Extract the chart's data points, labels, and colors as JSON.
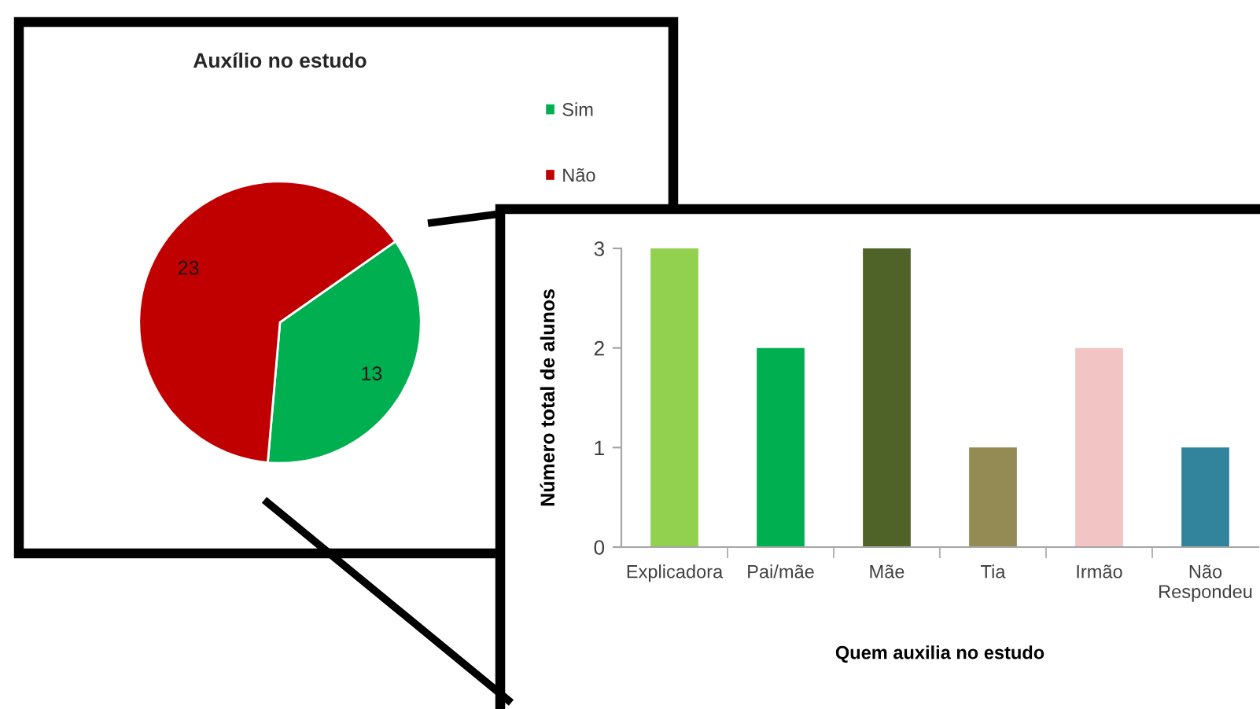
{
  "chart_data": [
    {
      "type": "pie",
      "title": "Auxílio no estudo",
      "categories": [
        "Sim",
        "Não"
      ],
      "values": [
        13,
        23
      ],
      "colors": [
        "#00b050",
        "#c00000"
      ],
      "data_labels": true,
      "legend": "top right"
    },
    {
      "type": "bar",
      "xlabel": "Quem auxilia no estudo",
      "ylabel": "Número total de alunos",
      "categories": [
        "Explicadora",
        "Pai/mãe",
        "Mãe",
        "Tia",
        "Irmão",
        "Não\nRespondeu"
      ],
      "values": [
        3,
        2,
        3,
        1,
        2,
        1
      ],
      "colors": [
        "#92d050",
        "#00b050",
        "#4f6228",
        "#948a54",
        "#f2c4c4",
        "#31849b"
      ],
      "ylim": [
        0,
        3
      ],
      "yticks": [
        0,
        1,
        2,
        3
      ]
    }
  ]
}
